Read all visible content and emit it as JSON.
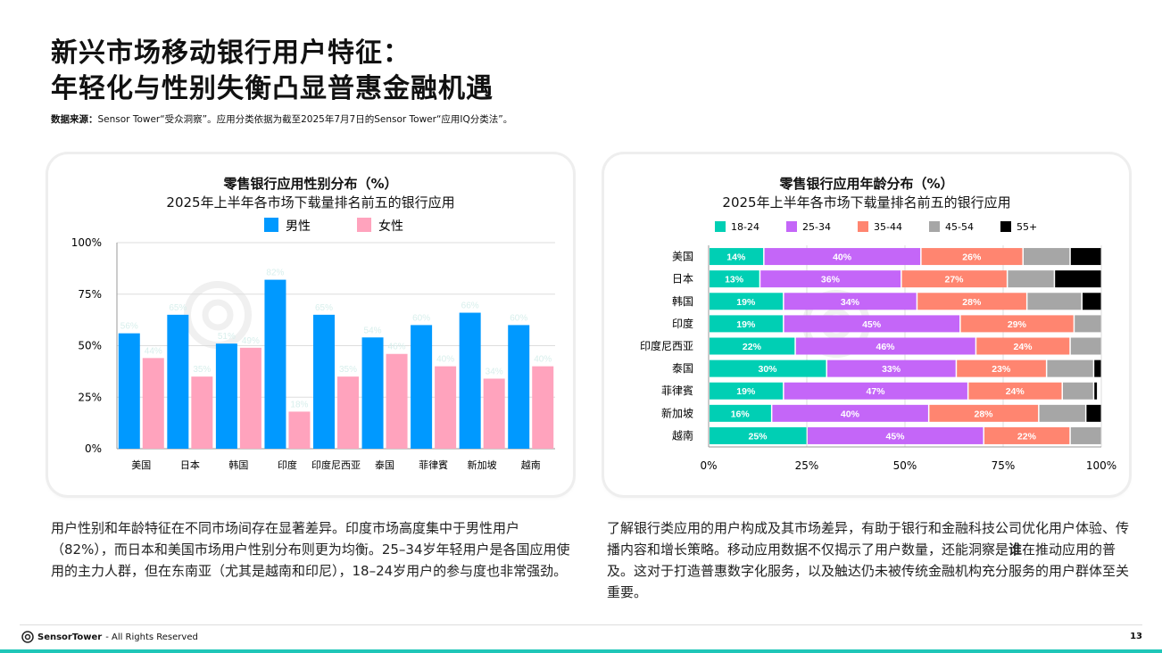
{
  "title_line1": "新兴市场移动银行用户特征：",
  "title_line2": "年轻化与性别失衡凸显普惠金融机遇",
  "source_label": "数据来源：",
  "source_text": "Sensor Tower“受众洞察”。应用分类依据为截至2025年7月7日的Sensor Tower“应用IQ分类法”。",
  "watermark": "Sensor Tower",
  "chart_data": [
    {
      "type": "bar",
      "title": "零售银行应用性别分布（%）",
      "subtitle": "2025年上半年各市场下载量排名前五的银行应用",
      "categories": [
        "美国",
        "日本",
        "韩国",
        "印度",
        "印度尼西亚",
        "泰国",
        "菲律賓",
        "新加坡",
        "越南"
      ],
      "series": [
        {
          "name": "男性",
          "color": "#0099ff",
          "values": [
            56,
            65,
            51,
            82,
            65,
            54,
            60,
            66,
            60
          ]
        },
        {
          "name": "女性",
          "color": "#ffa3bd",
          "values": [
            44,
            35,
            49,
            18,
            35,
            46,
            40,
            34,
            40
          ]
        }
      ],
      "yticks": [
        "0%",
        "25%",
        "50%",
        "75%",
        "100%"
      ],
      "ylim": [
        0,
        100
      ],
      "grid": true,
      "legend": "top"
    },
    {
      "type": "bar",
      "orientation": "horizontal",
      "stacked": true,
      "title": "零售银行应用年龄分布（%）",
      "subtitle": "2025年上半年各市场下载量排名前五的银行应用",
      "categories": [
        "美国",
        "日本",
        "韩国",
        "印度",
        "印度尼西亚",
        "泰国",
        "菲律賓",
        "新加坡",
        "越南"
      ],
      "series": [
        {
          "name": "18-24",
          "color": "#00cfb4",
          "values": [
            14,
            13,
            19,
            19,
            22,
            30,
            19,
            16,
            25
          ]
        },
        {
          "name": "25-34",
          "color": "#c466f8",
          "values": [
            40,
            36,
            34,
            45,
            46,
            33,
            47,
            40,
            45
          ]
        },
        {
          "name": "35-44",
          "color": "#ff8570",
          "values": [
            26,
            27,
            28,
            29,
            24,
            23,
            24,
            28,
            22
          ]
        },
        {
          "name": "45-54",
          "color": "#a6a6a6",
          "values": [
            12,
            12,
            14,
            7,
            8,
            12,
            8,
            12,
            8
          ]
        },
        {
          "name": "55+",
          "color": "#000000",
          "values": [
            8,
            12,
            5,
            0,
            0,
            2,
            1,
            4,
            0
          ]
        }
      ],
      "labeled_series": [
        "18-24",
        "25-34",
        "35-44"
      ],
      "xticks": [
        "0%",
        "25%",
        "50%",
        "75%",
        "100%"
      ],
      "xlim": [
        0,
        100
      ],
      "grid": true,
      "legend": "top"
    }
  ],
  "para_left": "用户性别和年龄特征在不同市场间存在显著差异。印度市场高度集中于男性用户（82%），而日本和美国市场用户性别分布则更为均衡。25–34岁年轻用户是各国应用使用的主力人群，但在东南亚（尤其是越南和印尼），18–24岁用户的参与度也非常强劲。",
  "para_right_a": "了解银行类应用的用户构成及其市场差异，有助于银行和金融科技公司优化用户体验、传播内容和增长策略。移动应用数据不仅揭示了用户数量，还能洞察是",
  "para_right_bold": "谁",
  "para_right_b": "在推动应用的普及。这对于打造普惠数字化服务，以及触达仍未被传统金融机构充分服务的用户群体至关重要。",
  "footer": {
    "logo": "SensorTower",
    "rights": "- All Rights Reserved",
    "page": "13"
  }
}
